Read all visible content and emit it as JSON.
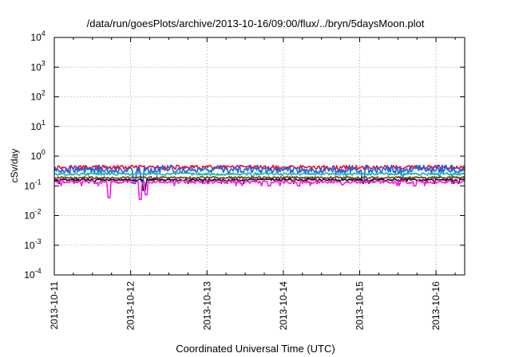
{
  "chart_data": {
    "type": "line",
    "title": "/data/run/goesPlots/archive/2013-10-16/09:00/flux/../bryn/5daysMoon.plot",
    "xlabel": "Coordinated Universal Time (UTC)",
    "ylabel": "cSv/day",
    "y_scale": "log",
    "ylim": [
      0.0001,
      10000
    ],
    "y_ticks": [
      {
        "value": 0.0001,
        "base": "10",
        "exp": "-4"
      },
      {
        "value": 0.001,
        "base": "10",
        "exp": "-3"
      },
      {
        "value": 0.01,
        "base": "10",
        "exp": "-2"
      },
      {
        "value": 0.1,
        "base": "10",
        "exp": "-1"
      },
      {
        "value": 1,
        "base": "10",
        "exp": "0"
      },
      {
        "value": 10,
        "base": "10",
        "exp": "1"
      },
      {
        "value": 100,
        "base": "10",
        "exp": "2"
      },
      {
        "value": 1000,
        "base": "10",
        "exp": "3"
      },
      {
        "value": 10000,
        "base": "10",
        "exp": "4"
      }
    ],
    "xlim": [
      "2013-10-11",
      "2013-10-16 09:00"
    ],
    "x_ticks": [
      "2013-10-11",
      "2013-10-12",
      "2013-10-13",
      "2013-10-14",
      "2013-10-15",
      "2013-10-16"
    ],
    "grid": true,
    "legend": "none",
    "series": [
      {
        "color": "#e8112d",
        "base": 0.42,
        "noise": 0.16,
        "dips": []
      },
      {
        "color": "#1e63e6",
        "base": 0.34,
        "noise": 0.25,
        "dips": [
          [
            1.05,
            0.12
          ],
          [
            1.15,
            0.14
          ],
          [
            4.05,
            0.14
          ]
        ]
      },
      {
        "color": "#15b3a8",
        "base": 0.25,
        "noise": 0.1,
        "dips": []
      },
      {
        "color": "#7a3c1a",
        "base": 0.19,
        "noise": 0.08,
        "dips": []
      },
      {
        "color": "#111111",
        "base": 0.16,
        "noise": 0.08,
        "dips": [
          [
            1.18,
            0.07
          ]
        ]
      },
      {
        "color": "#ff14e6",
        "base": 0.135,
        "noise": 0.12,
        "dips": [
          [
            0.72,
            0.04
          ],
          [
            1.12,
            0.035
          ],
          [
            1.2,
            0.05
          ],
          [
            2.82,
            0.1
          ],
          [
            3.2,
            0.1
          ],
          [
            3.78,
            0.11
          ],
          [
            4.72,
            0.1
          ]
        ]
      }
    ]
  }
}
